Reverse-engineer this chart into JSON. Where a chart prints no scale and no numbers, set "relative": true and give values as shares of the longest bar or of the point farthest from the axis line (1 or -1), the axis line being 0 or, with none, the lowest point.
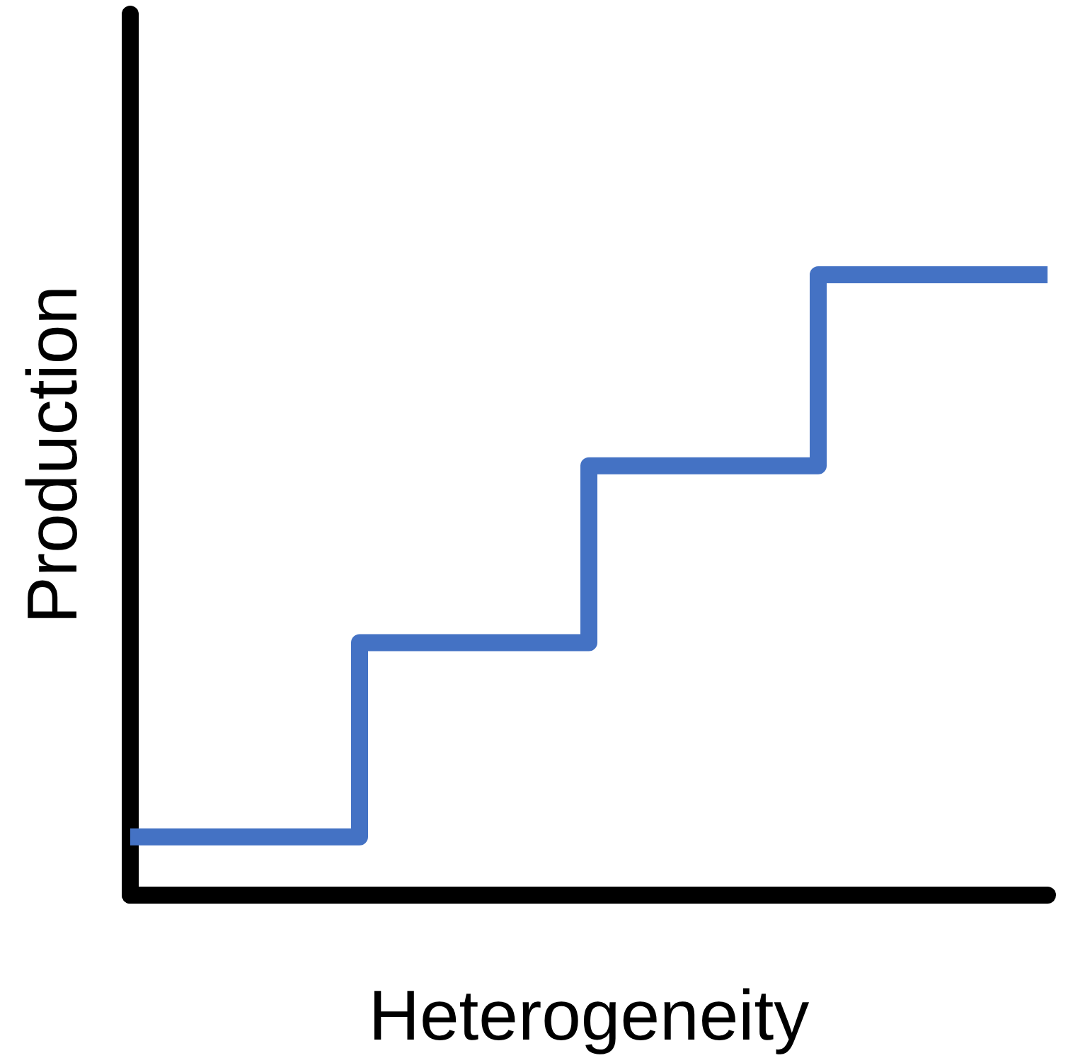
{
  "chart_data": {
    "type": "step",
    "xlabel": "Heterogeneity",
    "ylabel": "Production",
    "relative": true,
    "categories": [
      null,
      null,
      null,
      null,
      null
    ],
    "series": [
      {
        "color": "#4472c4",
        "values": [
          0.094,
          0.407,
          0.692,
          1,
          1
        ]
      }
    ],
    "grid": false,
    "marker": "none",
    "line_style": "solid"
  }
}
